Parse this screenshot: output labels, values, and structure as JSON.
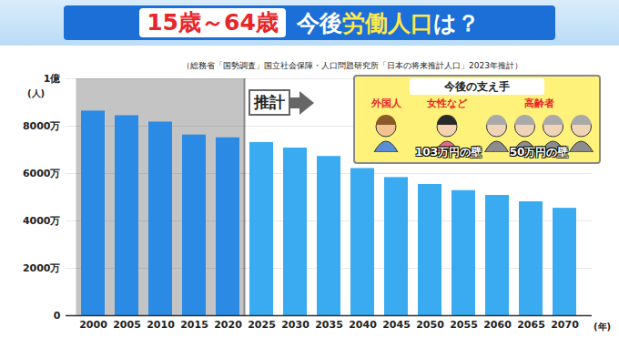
{
  "chart_data": {
    "type": "bar",
    "title_segments": [
      "15歳～64歳",
      "今後",
      "労働人口",
      "は？"
    ],
    "source": "（総務省「国勢調査」国立社会保障・人口問題研究所「日本の将来推計人口」2023年推計）",
    "y_unit": "(人)",
    "x_unit": "(年)",
    "categories": [
      "2000",
      "2005",
      "2010",
      "2015",
      "2020",
      "2025",
      "2030",
      "2035",
      "2040",
      "2045",
      "2050",
      "2055",
      "2060",
      "2065",
      "2070"
    ],
    "values": [
      8638,
      8442,
      8174,
      7629,
      7509,
      7310,
      7076,
      6722,
      6213,
      5832,
      5540,
      5280,
      5078,
      4809,
      4535
    ],
    "colors": [
      "#2a8ae4",
      "#2a8ae4",
      "#2a8ae4",
      "#2a8ae4",
      "#2a8ae4",
      "#3aabf0",
      "#3aabf0",
      "#3aabf0",
      "#3aabf0",
      "#3aabf0",
      "#3aabf0",
      "#3aabf0",
      "#3aabf0",
      "#3aabf0",
      "#3aabf0"
    ],
    "ylim": [
      0,
      10000
    ],
    "yticks": [
      0,
      {
        "value": 2000,
        "label": "2000万"
      },
      {
        "value": 4000,
        "label": "4000万"
      },
      {
        "value": 6000,
        "label": "6000万"
      },
      {
        "value": 8000,
        "label": "8000万"
      },
      {
        "value": 10000,
        "label": "1億"
      }
    ],
    "grid": true,
    "shaded_range": [
      "2000",
      "2020"
    ],
    "projection_label": "推計",
    "supporters": {
      "title": "今後の支え手",
      "groups": [
        {
          "label": "外国人"
        },
        {
          "label": "女性など",
          "note": "103万円の壁"
        },
        {
          "label": "高齢者",
          "note": "50万円の壁"
        }
      ]
    }
  }
}
